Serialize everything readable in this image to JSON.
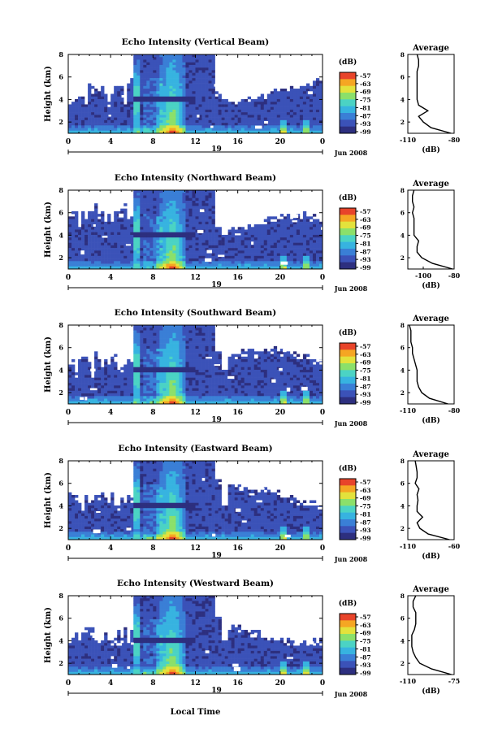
{
  "shared": {
    "x_axis_label": "Local Time",
    "day_label": "19",
    "month_label": "Jun 2008",
    "x_ticks": [
      "0",
      "4",
      "8",
      "12",
      "16",
      "20",
      "0"
    ],
    "y_ticks": [
      "2",
      "4",
      "6",
      "8"
    ],
    "y_label": "Height (km)",
    "colorbar_unit": "(dB)",
    "colorbar_ticks": [
      "-57",
      "-63",
      "-69",
      "-75",
      "-81",
      "-87",
      "-93",
      "-99"
    ],
    "profile_title": "Average",
    "profile_xlabel": "(dB)",
    "colors": {
      "background_fill": "#3a3f8a",
      "colormap": [
        "#2d2f7f",
        "#3b52b8",
        "#3a7fd6",
        "#37b3e0",
        "#4bd3c4",
        "#8be06a",
        "#e3e23c",
        "#f5a623",
        "#e8442a"
      ]
    }
  },
  "chart_data": [
    {
      "type": "heatmap",
      "title": "Echo Intensity (Vertical Beam)",
      "xlabel": "",
      "ylabel": "Height (km)",
      "xlim": [
        0,
        24
      ],
      "ylim": [
        1,
        8
      ],
      "colorbar_range": [
        -99,
        -57
      ],
      "profile": {
        "xticks": [
          "-110",
          "-80"
        ],
        "xlim": [
          -110,
          -80
        ],
        "height_km": [
          1.0,
          1.5,
          2.0,
          2.5,
          3.0,
          3.5,
          4.0,
          4.5,
          5.0,
          5.5,
          6.0,
          6.5,
          7.0,
          7.5,
          8.0
        ],
        "values_db": [
          -82,
          -95,
          -100,
          -103,
          -97,
          -103,
          -104,
          -104,
          -104,
          -104,
          -104,
          -104,
          -103,
          -103,
          -104
        ]
      }
    },
    {
      "type": "heatmap",
      "title": "Echo Intensity (Northward Beam)",
      "xlabel": "",
      "ylabel": "Height (km)",
      "xlim": [
        0,
        24
      ],
      "ylim": [
        1,
        8
      ],
      "colorbar_range": [
        -99,
        -57
      ],
      "profile": {
        "xticks": [
          "-100",
          "-80"
        ],
        "xlim": [
          -110,
          -80
        ],
        "height_km": [
          1.0,
          1.5,
          2.0,
          2.5,
          3.0,
          3.5,
          4.0,
          4.5,
          5.0,
          5.5,
          6.0,
          6.5,
          7.0,
          7.5,
          8.0
        ],
        "values_db": [
          -81,
          -94,
          -101,
          -104,
          -104,
          -103,
          -106,
          -106,
          -106,
          -106,
          -107,
          -106,
          -107,
          -107,
          -106
        ]
      }
    },
    {
      "type": "heatmap",
      "title": "Echo Intensity (Southward Beam)",
      "xlabel": "",
      "ylabel": "Height (km)",
      "xlim": [
        0,
        24
      ],
      "ylim": [
        1,
        8
      ],
      "colorbar_range": [
        -99,
        -57
      ],
      "profile": {
        "xticks": [
          "-110",
          "-80"
        ],
        "xlim": [
          -110,
          -80
        ],
        "height_km": [
          1.0,
          1.5,
          2.0,
          2.5,
          3.0,
          3.5,
          4.0,
          4.5,
          5.0,
          5.5,
          6.0,
          6.5,
          7.0,
          7.5,
          8.0
        ],
        "values_db": [
          -84,
          -96,
          -101,
          -103,
          -104,
          -104,
          -104,
          -105,
          -106,
          -107,
          -107,
          -108,
          -108,
          -108,
          -109
        ]
      }
    },
    {
      "type": "heatmap",
      "title": "Echo Intensity (Eastward Beam)",
      "xlabel": "",
      "ylabel": "Height (km)",
      "xlim": [
        0,
        24
      ],
      "ylim": [
        1,
        8
      ],
      "colorbar_range": [
        -99,
        -57
      ],
      "profile": {
        "xticks": [
          "-110",
          "-60"
        ],
        "xlim": [
          -110,
          -60
        ],
        "height_km": [
          1.0,
          1.5,
          2.0,
          2.5,
          3.0,
          3.5,
          4.0,
          4.5,
          5.0,
          5.5,
          6.0,
          6.5,
          7.0,
          7.5,
          8.0
        ],
        "values_db": [
          -65,
          -88,
          -97,
          -100,
          -94,
          -100,
          -100,
          -99,
          -100,
          -98,
          -102,
          -100,
          -100,
          -101,
          -102
        ]
      }
    },
    {
      "type": "heatmap",
      "title": "Echo Intensity (Westward Beam)",
      "xlabel": "Local Time",
      "ylabel": "Height (km)",
      "xlim": [
        0,
        24
      ],
      "ylim": [
        1,
        8
      ],
      "colorbar_range": [
        -99,
        -57
      ],
      "profile": {
        "xticks": [
          "-110",
          "-75"
        ],
        "xlim": [
          -110,
          -75
        ],
        "height_km": [
          1.0,
          1.5,
          2.0,
          2.5,
          3.0,
          3.5,
          4.0,
          4.5,
          5.0,
          5.5,
          6.0,
          6.5,
          7.0,
          7.5,
          8.0
        ],
        "values_db": [
          -77,
          -92,
          -101,
          -104,
          -106,
          -107,
          -107,
          -107,
          -105,
          -104,
          -104,
          -104,
          -106,
          -106,
          -104
        ]
      }
    }
  ]
}
